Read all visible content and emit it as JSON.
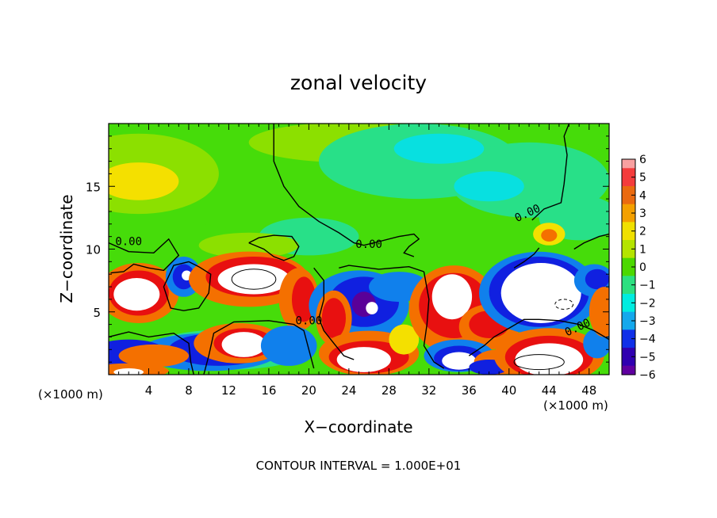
{
  "chart_data": {
    "type": "heatmap",
    "title": "zonal velocity",
    "xlabel": "X−coordinate",
    "ylabel": "Z−coordinate",
    "x_unit_label": "(×1000 m)",
    "y_unit_label": "(×1000 m)",
    "xlim": [
      0,
      50
    ],
    "ylim": [
      0,
      20
    ],
    "x_ticks": [
      4,
      8,
      12,
      16,
      20,
      24,
      28,
      32,
      36,
      40,
      44,
      48
    ],
    "y_ticks": [
      5,
      10,
      15
    ],
    "footer": "CONTOUR INTERVAL = 1.000E+01",
    "contour_labels": [
      {
        "text": "0.00",
        "x": 2,
        "z": 10.3
      },
      {
        "text": "0.00",
        "x": 26,
        "z": 10.1
      },
      {
        "text": "0.00",
        "x": 42,
        "z": 12.6
      },
      {
        "text": "0.00",
        "x": 20,
        "z": 4.0
      },
      {
        "text": "0.00",
        "x": 47,
        "z": 3.5
      }
    ],
    "colorbar": {
      "ticks": [
        "6",
        "5",
        "4",
        "3",
        "2",
        "1",
        "0",
        "−1",
        "−2",
        "−3",
        "−4",
        "−5",
        "−6"
      ],
      "colors": [
        "#f8a0a0",
        "#f43c3c",
        "#ea6a10",
        "#f4a000",
        "#f0e000",
        "#b4e400",
        "#4cd800",
        "#2ce080",
        "#00ece0",
        "#14a8ec",
        "#1030e8",
        "#3000b0",
        "#6000a0"
      ]
    },
    "field_colors": {
      "above": "#ffffff",
      "strong_pos": "#e81010",
      "moderate_pos": "#f47000",
      "weak_pos": "#f4e000",
      "slight_pos": "#8ce000",
      "near_zero": "#46dc0a",
      "slight_neg": "#28e088",
      "weak_neg": "#08e0e0",
      "moderate_neg": "#1080ec",
      "strong_neg": "#1020e0",
      "below": "#5a0098",
      "contour": "#000000"
    }
  }
}
